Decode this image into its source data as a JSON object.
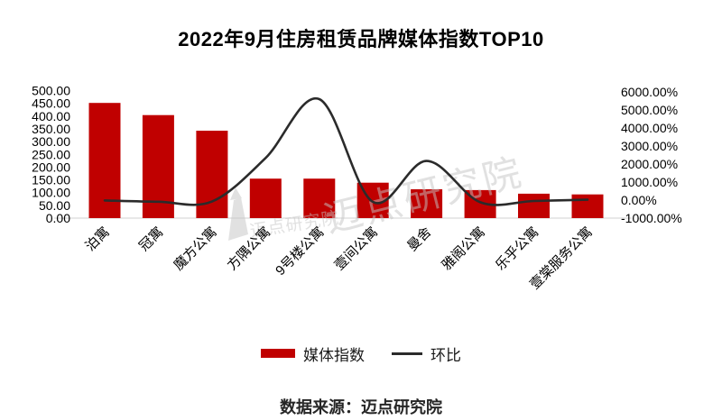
{
  "title": "2022年9月住房租赁品牌媒体指数TOP10",
  "source_note": "数据来源：迈点研究院",
  "legend": {
    "bar_label": "媒体指数",
    "line_label": "环比"
  },
  "colors": {
    "bar": "#c00000",
    "line": "#2b2b2b",
    "axis_text": "#000000",
    "baseline": "#d9d9d9",
    "watermark": "#c5c5c5"
  },
  "watermark": {
    "logo": "tower-icon",
    "small_text": "迈点研究院",
    "large_text": "迈点研究院"
  },
  "chart_data": {
    "type": "bar+line combo",
    "title": "2022年9月住房租赁品牌媒体指数TOP10",
    "categories": [
      "泊寓",
      "冠寓",
      "魔方公寓",
      "方隅公寓",
      "9号楼公寓",
      "壹间公寓",
      "曼舍",
      "雅阁公寓",
      "乐乎公寓",
      "壹棠服务公寓"
    ],
    "series": [
      {
        "name": "媒体指数",
        "type": "bar",
        "axis": "left",
        "values": [
          452,
          404,
          343,
          155,
          155,
          139,
          113,
          110,
          96,
          93
        ]
      },
      {
        "name": "环比",
        "type": "line",
        "axis": "right",
        "unit": "%",
        "values": [
          -20,
          -90,
          -80,
          2335,
          5600,
          -100,
          2170,
          -120,
          -50,
          20
        ]
      }
    ],
    "left_axis": {
      "min": 0,
      "max": 500,
      "step": 50,
      "ticks": [
        "500.00",
        "450.00",
        "400.00",
        "350.00",
        "300.00",
        "250.00",
        "200.00",
        "150.00",
        "100.00",
        "50.00",
        "0.00"
      ]
    },
    "right_axis": {
      "min": -1000,
      "max": 6000,
      "step": 1000,
      "ticks": [
        "6000.00%",
        "5000.00%",
        "4000.00%",
        "3000.00%",
        "2000.00%",
        "1000.00%",
        "0.00%",
        "-1000.00%"
      ]
    },
    "grid": "off",
    "legend_position": "bottom",
    "category_label_rotation": -45
  }
}
